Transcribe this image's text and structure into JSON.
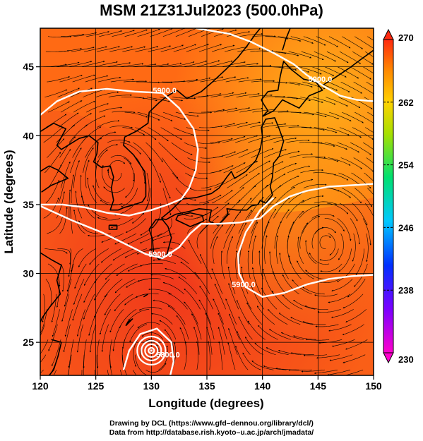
{
  "title": "MSM 21Z31Jul2023 (500.0hPa)",
  "axes": {
    "xlabel": "Longitude (degrees)",
    "ylabel": "Latitude  (degrees)",
    "xlim": [
      120,
      150
    ],
    "ylim": [
      22.6,
      47.8
    ],
    "xticks": [
      120,
      125,
      130,
      135,
      140,
      145,
      150
    ],
    "yticks": [
      25,
      30,
      35,
      40,
      45
    ]
  },
  "colorbar": {
    "min": 230,
    "max": 270,
    "labels": [
      "270",
      "262",
      "254",
      "246",
      "238",
      "230"
    ]
  },
  "contours": [
    {
      "label": "5900.0",
      "lon": 131.2,
      "lat": 43.1
    },
    {
      "label": "5900.0",
      "lon": 145.2,
      "lat": 43.9
    },
    {
      "label": "5900.0",
      "lon": 130.8,
      "lat": 31.2
    },
    {
      "label": "5900.0",
      "lon": 138.3,
      "lat": 29.0
    },
    {
      "label": "5800.0",
      "lon": 131.5,
      "lat": 23.9
    }
  ],
  "typhoon_center": {
    "lon": 130.0,
    "lat": 24.4
  },
  "credit": {
    "line1": "Drawing by DCL (https://www.gfd–dennou.org/library/dcl/)",
    "line2": "Data from http://database.rish.kyoto–u.ac.jp/arch/jmadata/"
  },
  "colors": {
    "warm": "#f23b1f",
    "mid": "#ff7a10",
    "cool": "#ffb000"
  }
}
